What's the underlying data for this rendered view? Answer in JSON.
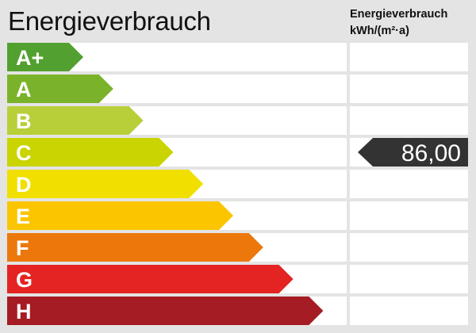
{
  "chart_data": {
    "type": "bar",
    "title": "Energieverbrauch",
    "column_header": [
      "Energieverbrauch",
      "kWh/(m²·a)"
    ],
    "categories": [
      "A+",
      "A",
      "B",
      "C",
      "D",
      "E",
      "F",
      "G",
      "H"
    ],
    "colors": [
      "#52a02f",
      "#7ab32a",
      "#b9cf3a",
      "#c9d400",
      "#f1df00",
      "#fbc500",
      "#ec780c",
      "#e32422",
      "#a51c24"
    ],
    "marker": {
      "category": "C",
      "value": "86,00",
      "color": "#333333"
    }
  }
}
